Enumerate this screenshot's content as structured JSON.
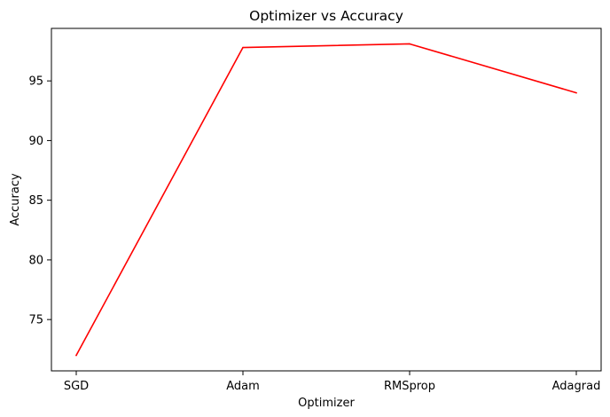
{
  "chart_data": {
    "type": "line",
    "title": "Optimizer vs Accuracy",
    "xlabel": "Optimizer",
    "ylabel": "Accuracy",
    "categories": [
      "SGD",
      "Adam",
      "RMSprop",
      "Adagrad"
    ],
    "series": [
      {
        "values": [
          72.0,
          97.8,
          98.1,
          94.0
        ],
        "color": "#ff0000"
      }
    ],
    "yticks": [
      75,
      80,
      85,
      90,
      95
    ],
    "ylim": [
      70.7,
      99.4
    ],
    "grid": false,
    "legend": "none"
  }
}
